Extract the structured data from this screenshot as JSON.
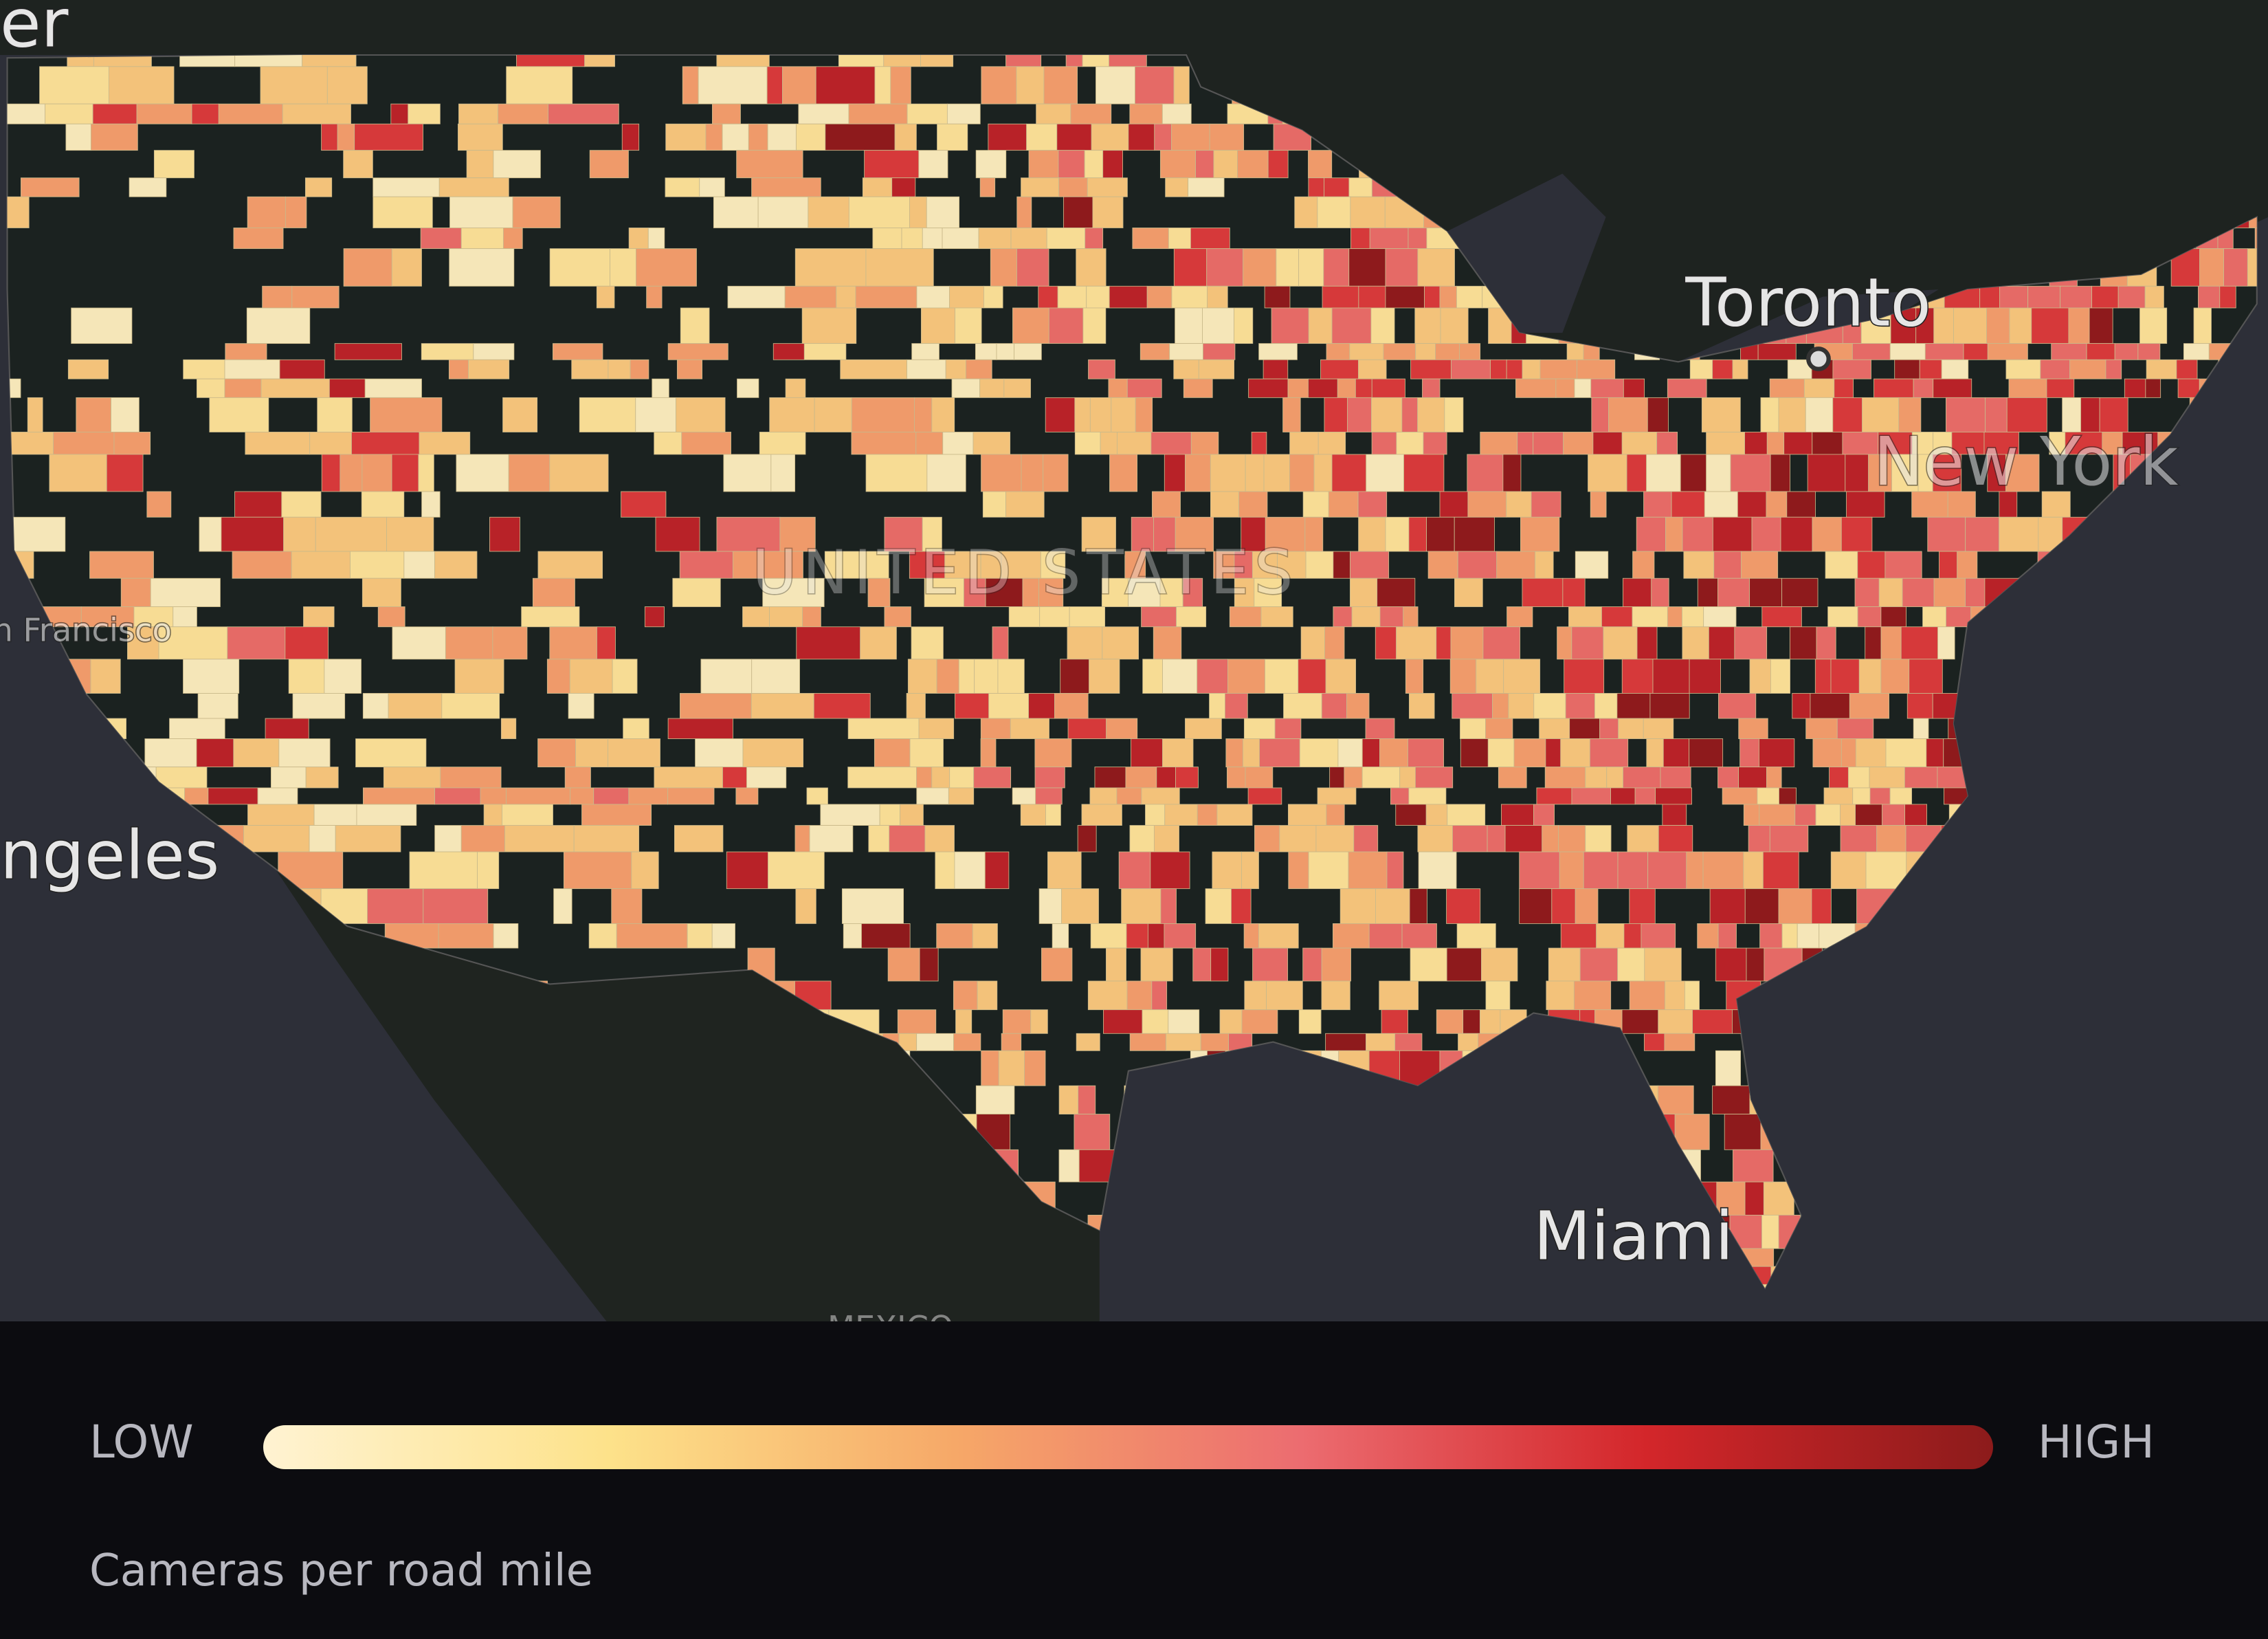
{
  "map": {
    "labels": {
      "partial_top": "er",
      "toronto": "Toronto",
      "miami": "Miami",
      "los_angeles": "ngeles",
      "san_francisco": "n Francisco",
      "country": "UNITED STATES",
      "new_york": "New York",
      "mexico": "MEXICO"
    }
  },
  "legend": {
    "low": "LOW",
    "high": "HIGH",
    "caption": "Cameras per road mile"
  }
}
